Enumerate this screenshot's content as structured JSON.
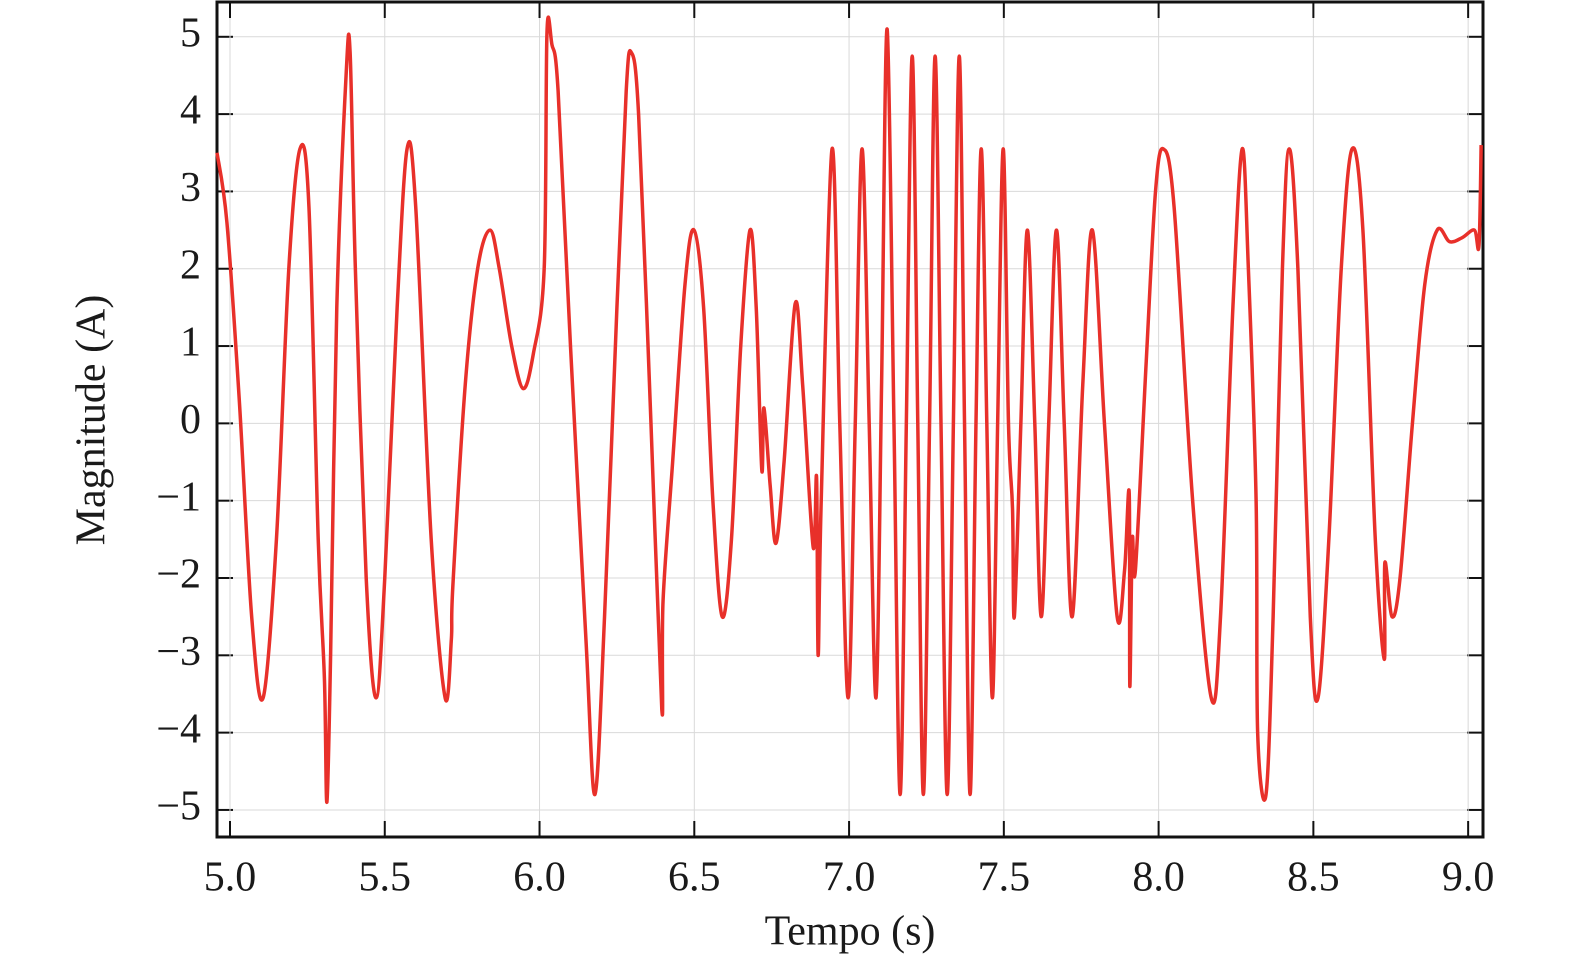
{
  "chart_data": {
    "type": "line",
    "xlabel": "Tempo (s)",
    "ylabel": "Magnitude (A)",
    "color": "#e8302a",
    "grid": true,
    "xlim": [
      4.958,
      9.048
    ],
    "ylim": [
      -5.35,
      5.45
    ],
    "xticks": [
      {
        "value": 5,
        "label": "5.0"
      },
      {
        "value": 5.5,
        "label": "5.5"
      },
      {
        "value": 6,
        "label": "6.0"
      },
      {
        "value": 6.5,
        "label": "6.5"
      },
      {
        "value": 7,
        "label": "7.0"
      },
      {
        "value": 7.5,
        "label": "7.5"
      },
      {
        "value": 8,
        "label": "8.0"
      },
      {
        "value": 8.5,
        "label": "8.5"
      },
      {
        "value": 9,
        "label": "9.0"
      }
    ],
    "yticks": [
      5,
      4,
      3,
      2,
      1,
      0,
      {
        "value": -1,
        "label": "−1"
      },
      {
        "value": -2,
        "label": "−2"
      },
      {
        "value": -3,
        "label": "−3"
      },
      {
        "value": -4,
        "label": "−4"
      },
      {
        "value": -5,
        "label": "−5"
      }
    ],
    "x": [
      4.958,
      4.99,
      5.03,
      5.07,
      5.107,
      5.15,
      5.19,
      5.226,
      5.255,
      5.285,
      5.305,
      5.313,
      5.325,
      5.345,
      5.375,
      5.388,
      5.405,
      5.44,
      5.472,
      5.5,
      5.54,
      5.572,
      5.6,
      5.65,
      5.695,
      5.715,
      5.72,
      5.76,
      5.8,
      5.84,
      5.87,
      5.91,
      5.947,
      5.98,
      6.015,
      6.024,
      6.04,
      6.06,
      6.1,
      6.15,
      6.179,
      6.21,
      6.25,
      6.28,
      6.296,
      6.32,
      6.36,
      6.395,
      6.399,
      6.43,
      6.47,
      6.499,
      6.53,
      6.56,
      6.59,
      6.62,
      6.65,
      6.68,
      6.7,
      6.718,
      6.725,
      6.745,
      6.764,
      6.79,
      6.826,
      6.85,
      6.884,
      6.895,
      6.9,
      6.91,
      6.945,
      6.97,
      6.997,
      7.02,
      7.042,
      7.065,
      7.087,
      7.105,
      7.123,
      7.145,
      7.165,
      7.185,
      7.204,
      7.222,
      7.24,
      7.26,
      7.278,
      7.297,
      7.317,
      7.337,
      7.356,
      7.373,
      7.391,
      7.41,
      7.427,
      7.445,
      7.463,
      7.48,
      7.498,
      7.515,
      7.528,
      7.534,
      7.555,
      7.576,
      7.6,
      7.621,
      7.645,
      7.67,
      7.695,
      7.721,
      7.755,
      7.786,
      7.825,
      7.866,
      7.89,
      7.905,
      7.907,
      7.915,
      7.925,
      7.96,
      7.99,
      8.015,
      8.05,
      8.11,
      8.17,
      8.2,
      8.24,
      8.27,
      8.29,
      8.315,
      8.32,
      8.347,
      8.37,
      8.4,
      8.422,
      8.45,
      8.49,
      8.515,
      8.55,
      8.59,
      8.625,
      8.66,
      8.7,
      8.729,
      8.731,
      8.754,
      8.78,
      8.82,
      8.86,
      8.9,
      8.94,
      8.98,
      9.02,
      9.035,
      9.042
    ],
    "values": [
      3.5,
      2.6,
      0.3,
      -2.5,
      -3.55,
      -1.5,
      2.0,
      3.55,
      2.8,
      -1.5,
      -3.3,
      -4.9,
      -3.0,
      1.5,
      4.5,
      4.8,
      2.0,
      -2.0,
      -3.55,
      -2.0,
      1.5,
      3.55,
      2.8,
      -1.5,
      -3.55,
      -2.8,
      -2.1,
      0.5,
      2.0,
      2.5,
      2.0,
      1.0,
      0.45,
      0.9,
      2.0,
      5.05,
      4.9,
      4.3,
      1.0,
      -2.8,
      -4.8,
      -2.5,
      1.5,
      4.3,
      4.8,
      4.0,
      0.0,
      -3.7,
      -2.3,
      -0.5,
      1.8,
      2.5,
      1.5,
      -1.0,
      -2.5,
      -1.5,
      1.0,
      2.5,
      1.5,
      -0.6,
      0.2,
      -0.8,
      -1.55,
      -0.5,
      1.55,
      0.5,
      -1.6,
      -0.7,
      -3.0,
      -1.0,
      3.55,
      0.0,
      -3.55,
      0.0,
      3.55,
      0.0,
      -3.55,
      0.5,
      5.1,
      0.0,
      -4.8,
      0.0,
      4.75,
      0.0,
      -4.8,
      0.0,
      4.75,
      0.0,
      -4.8,
      0.0,
      4.75,
      0.0,
      -4.8,
      0.0,
      3.55,
      0.0,
      -3.55,
      0.0,
      3.55,
      0.0,
      -1.1,
      -2.5,
      0.0,
      2.5,
      0.0,
      -2.5,
      0.0,
      2.5,
      0.0,
      -2.5,
      0.5,
      2.5,
      0.0,
      -2.5,
      -1.9,
      -0.9,
      -3.4,
      -1.5,
      -1.9,
      0.8,
      3.0,
      3.55,
      2.8,
      -1.0,
      -3.55,
      -2.5,
      1.5,
      3.55,
      2.0,
      -1.0,
      -4.0,
      -4.8,
      -2.5,
      2.0,
      3.55,
      2.0,
      -2.5,
      -3.55,
      -1.5,
      2.0,
      3.55,
      2.5,
      -1.5,
      -3.05,
      -1.8,
      -2.5,
      -2.0,
      0.0,
      1.8,
      2.5,
      2.35,
      2.4,
      2.5,
      2.3,
      3.6
    ]
  }
}
